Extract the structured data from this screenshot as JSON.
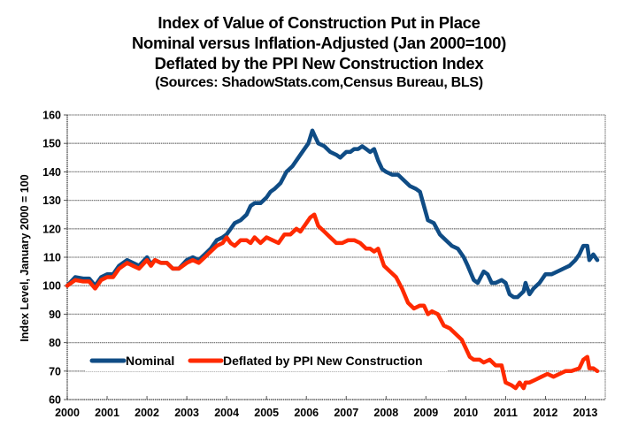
{
  "chart_data": {
    "type": "line",
    "title": "Index of Value of Construction Put in Place",
    "subtitle_lines": [
      "Nominal versus Inflation-Adjusted (Jan 2000=100)",
      "Deflated by the PPI New Construction Index"
    ],
    "source": "(Sources: ShadowStats.com,Census Bureau, BLS)",
    "xlabel": "",
    "ylabel": "Index Level, January 2000 = 100",
    "xlim": [
      2000,
      2013.5
    ],
    "ylim": [
      60,
      160
    ],
    "x_ticks": [
      "2000",
      "2001",
      "2002",
      "2003",
      "2004",
      "2005",
      "2006",
      "2007",
      "2008",
      "2009",
      "2010",
      "2011",
      "2012",
      "2013"
    ],
    "y_ticks": [
      "60",
      "70",
      "80",
      "90",
      "100",
      "110",
      "120",
      "130",
      "140",
      "150",
      "160"
    ],
    "grid": "horizontal",
    "legend_position": "bottom-left",
    "series": [
      {
        "name": "Nominal",
        "color": "#0f4c85",
        "x": [
          2000.0,
          2000.2,
          2000.4,
          2000.55,
          2000.7,
          2000.85,
          2001.0,
          2001.15,
          2001.3,
          2001.5,
          2001.65,
          2001.8,
          2002.0,
          2002.1,
          2002.2,
          2002.35,
          2002.5,
          2002.65,
          2002.8,
          2003.0,
          2003.15,
          2003.3,
          2003.45,
          2003.6,
          2003.75,
          2003.9,
          2004.0,
          2004.1,
          2004.2,
          2004.35,
          2004.5,
          2004.6,
          2004.7,
          2004.85,
          2005.0,
          2005.1,
          2005.2,
          2005.35,
          2005.5,
          2005.65,
          2005.8,
          2005.95,
          2006.05,
          2006.15,
          2006.2,
          2006.3,
          2006.45,
          2006.6,
          2006.75,
          2006.85,
          2007.0,
          2007.1,
          2007.2,
          2007.3,
          2007.4,
          2007.5,
          2007.6,
          2007.7,
          2007.8,
          2007.9,
          2008.0,
          2008.15,
          2008.3,
          2008.45,
          2008.6,
          2008.75,
          2008.85,
          2008.95,
          2009.05,
          2009.2,
          2009.35,
          2009.5,
          2009.65,
          2009.8,
          2009.95,
          2010.05,
          2010.2,
          2010.3,
          2010.45,
          2010.55,
          2010.65,
          2010.75,
          2010.9,
          2011.0,
          2011.1,
          2011.2,
          2011.3,
          2011.45,
          2011.5,
          2011.6,
          2011.7,
          2011.85,
          2012.0,
          2012.15,
          2012.3,
          2012.45,
          2012.6,
          2012.75,
          2012.85,
          2012.95,
          2013.05,
          2013.1,
          2013.2,
          2013.3
        ],
        "values": [
          100,
          103,
          102.5,
          102.5,
          100,
          103,
          104,
          104,
          107,
          109,
          108,
          107,
          110,
          107.5,
          109,
          108,
          108,
          106,
          106,
          109,
          110,
          109,
          111,
          113,
          116,
          117,
          118,
          120,
          122,
          123,
          125,
          128,
          129,
          129,
          131,
          133,
          134,
          136,
          140,
          142,
          145,
          148,
          150,
          154.5,
          153,
          150,
          149,
          147,
          146,
          145,
          147,
          147,
          148,
          148,
          149,
          148,
          147,
          148,
          144,
          141,
          140,
          139,
          139,
          137,
          135,
          134,
          133,
          128,
          123,
          122,
          118,
          116,
          114,
          113,
          110,
          107,
          102,
          101,
          105,
          104,
          101,
          101,
          102,
          101,
          97,
          96,
          96,
          98,
          101,
          97,
          99,
          101,
          104,
          104,
          105,
          106,
          107,
          109,
          111,
          114,
          114,
          109,
          111,
          109
        ]
      },
      {
        "name": "Deflated by PPI New Construction",
        "color": "#ff2a00",
        "x": [
          2000.0,
          2000.2,
          2000.4,
          2000.55,
          2000.7,
          2000.85,
          2001.0,
          2001.15,
          2001.3,
          2001.5,
          2001.65,
          2001.8,
          2002.0,
          2002.1,
          2002.2,
          2002.35,
          2002.5,
          2002.65,
          2002.8,
          2003.0,
          2003.15,
          2003.3,
          2003.45,
          2003.6,
          2003.75,
          2003.9,
          2004.0,
          2004.1,
          2004.2,
          2004.35,
          2004.5,
          2004.6,
          2004.7,
          2004.85,
          2005.0,
          2005.15,
          2005.3,
          2005.45,
          2005.6,
          2005.75,
          2005.85,
          2006.0,
          2006.1,
          2006.2,
          2006.3,
          2006.45,
          2006.6,
          2006.75,
          2006.9,
          2007.05,
          2007.2,
          2007.35,
          2007.5,
          2007.6,
          2007.7,
          2007.8,
          2007.95,
          2008.1,
          2008.25,
          2008.4,
          2008.55,
          2008.7,
          2008.85,
          2008.95,
          2009.05,
          2009.15,
          2009.3,
          2009.45,
          2009.6,
          2009.75,
          2009.9,
          2010.0,
          2010.1,
          2010.2,
          2010.35,
          2010.45,
          2010.6,
          2010.75,
          2010.9,
          2011.0,
          2011.15,
          2011.25,
          2011.35,
          2011.45,
          2011.5,
          2011.6,
          2011.75,
          2011.9,
          2012.05,
          2012.2,
          2012.35,
          2012.5,
          2012.65,
          2012.85,
          2012.95,
          2013.05,
          2013.1,
          2013.2,
          2013.3
        ],
        "values": [
          100,
          102,
          101.5,
          101.5,
          99,
          102,
          103,
          103,
          106,
          108,
          107,
          106,
          109,
          107,
          109,
          108,
          108,
          106,
          106,
          108,
          109,
          108,
          110,
          112,
          114,
          115,
          117,
          115,
          114,
          116,
          116,
          115,
          117,
          115,
          117,
          116,
          115,
          118,
          118,
          120,
          119,
          122,
          124,
          125,
          121,
          119,
          117,
          115,
          115,
          116,
          116,
          115,
          113,
          113,
          112,
          113,
          107,
          105,
          103,
          99,
          94,
          92,
          93,
          93,
          90,
          91,
          90,
          86,
          85,
          83,
          81,
          78,
          75,
          74,
          74,
          73,
          74,
          72,
          72,
          66,
          65,
          64,
          66,
          64,
          66,
          66,
          67,
          68,
          69,
          68,
          69,
          70,
          70,
          71,
          74,
          75,
          71,
          71,
          70
        ]
      }
    ]
  }
}
